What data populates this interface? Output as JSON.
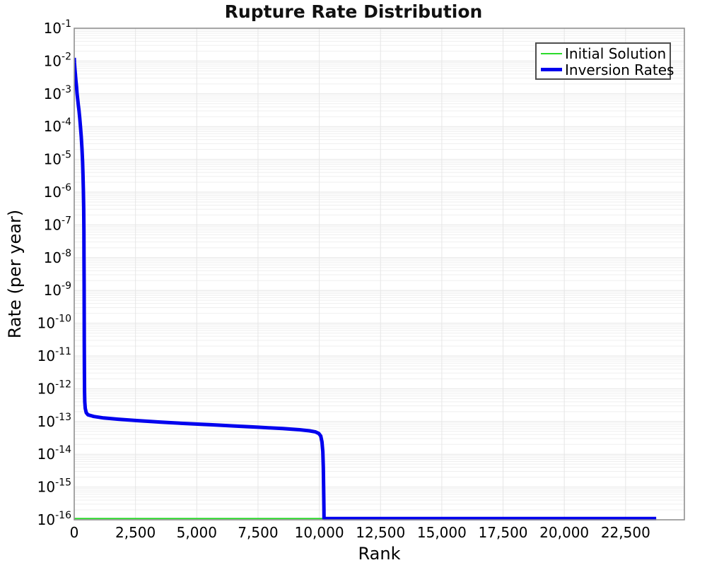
{
  "title": "Rupture Rate Distribution",
  "axes": {
    "xlabel": "Rank",
    "ylabel": "Rate (per year)"
  },
  "legend": {
    "position": "top-right",
    "items": [
      {
        "label": "Initial Solution",
        "color": "#2bdb2b",
        "thickness": 2
      },
      {
        "label": "Inversion Rates",
        "color": "#0000ee",
        "thickness": 5
      }
    ]
  },
  "colors": {
    "background": "#ffffff",
    "frame": "#909090",
    "grid_major": "#e6e6e6",
    "grid_minor": "#efefef",
    "text": "#000000",
    "initial_solution": "#2bdb2b",
    "inversion_rates": "#0000ee"
  },
  "chart_data": {
    "type": "line",
    "title": "Rupture Rate Distribution",
    "xlabel": "Rank",
    "ylabel": "Rate (per year)",
    "grid": true,
    "legend_position": "top-right",
    "x_axis": {
      "min": 0,
      "max": 24900,
      "ticks": [
        0,
        2500,
        5000,
        7500,
        10000,
        12500,
        15000,
        17500,
        20000,
        22500
      ],
      "tick_labels": [
        "0",
        "2,500",
        "5,000",
        "7,500",
        "10,000",
        "12,500",
        "15,000",
        "17,500",
        "20,000",
        "22,500"
      ]
    },
    "y_axis": {
      "scale": "log",
      "min": 1e-16,
      "max": 0.1,
      "tick_base": "10",
      "tick_exponents": [
        -1,
        -2,
        -3,
        -4,
        -5,
        -6,
        -7,
        -8,
        -9,
        -10,
        -11,
        -12,
        -13,
        -14,
        -15,
        -16
      ]
    },
    "series": [
      {
        "name": "Initial Solution",
        "color": "#2bdb2b",
        "line_width": 1.8,
        "points": [
          [
            0,
            1e-16
          ],
          [
            23750,
            1e-16
          ]
        ]
      },
      {
        "name": "Inversion Rates",
        "color": "#0000ee",
        "line_width": 5,
        "points": [
          [
            0,
            0.0125
          ],
          [
            10,
            0.009
          ],
          [
            25,
            0.006
          ],
          [
            45,
            0.004
          ],
          [
            70,
            0.0025
          ],
          [
            95,
            0.0016
          ],
          [
            115,
            0.001
          ],
          [
            140,
            0.00068
          ],
          [
            165,
            0.00047
          ],
          [
            195,
            0.0003
          ],
          [
            225,
            0.00018
          ],
          [
            255,
            0.0001
          ],
          [
            285,
            5e-05
          ],
          [
            315,
            2.2e-05
          ],
          [
            340,
            8.5e-06
          ],
          [
            358,
            3.2e-06
          ],
          [
            372,
            1.2e-06
          ],
          [
            388,
            3e-07
          ],
          [
            394,
            6e-08
          ],
          [
            399,
            1e-08
          ],
          [
            403,
            1.5e-09
          ],
          [
            407,
            2e-10
          ],
          [
            411,
            2.5e-11
          ],
          [
            415,
            3e-12
          ],
          [
            420,
            8e-13
          ],
          [
            430,
            4e-13
          ],
          [
            450,
            2.5e-13
          ],
          [
            490,
            1.85e-13
          ],
          [
            560,
            1.6e-13
          ],
          [
            800,
            1.42e-13
          ],
          [
            1200,
            1.28e-13
          ],
          [
            1800,
            1.17e-13
          ],
          [
            2500,
            1.07e-13
          ],
          [
            3500,
            9.6e-14
          ],
          [
            4500,
            8.7e-14
          ],
          [
            5500,
            8e-14
          ],
          [
            6500,
            7.3e-14
          ],
          [
            7500,
            6.7e-14
          ],
          [
            8500,
            6.1e-14
          ],
          [
            9200,
            5.6e-14
          ],
          [
            9600,
            5.2e-14
          ],
          [
            9850,
            4.8e-14
          ],
          [
            9980,
            4.3e-14
          ],
          [
            10060,
            3.6e-14
          ],
          [
            10110,
            2.4e-14
          ],
          [
            10145,
            1.2e-14
          ],
          [
            10165,
            4e-15
          ],
          [
            10180,
            8e-16
          ],
          [
            10190,
            2e-16
          ],
          [
            10195,
            1e-16
          ],
          [
            23750,
            1e-16
          ]
        ]
      }
    ]
  }
}
